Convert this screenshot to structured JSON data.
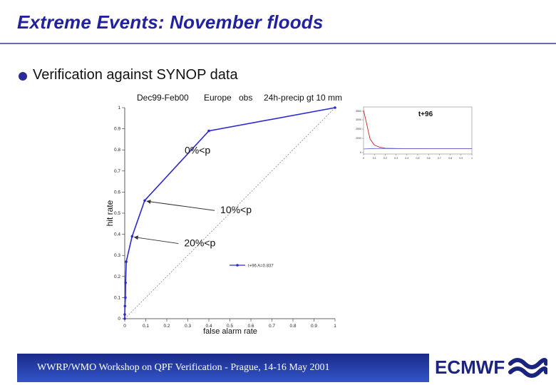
{
  "slide": {
    "title": "Extreme Events: November floods",
    "bullet": "Verification against SYNOP data",
    "footer": "WWRP/WMO Workshop on QPF Verification - Prague, 14-16 May 2001",
    "brand": "ECMWF",
    "colors": {
      "title": "#2222a0",
      "footer_bar": "#2a3fb0",
      "brand": "#1a237e"
    }
  },
  "chart_data": [
    {
      "type": "line",
      "title_parts": [
        "Dec99-Feb00",
        "Europe",
        "obs",
        "24h-precip gt 10 mm"
      ],
      "xlabel": "false alarm rate",
      "ylabel": "hit rate",
      "xlim": [
        0,
        1
      ],
      "ylim": [
        0,
        1
      ],
      "x_ticks": [
        "0",
        "0.1",
        "0.2",
        "0.3",
        "0.4",
        "0.5",
        "0.6",
        "0.7",
        "0.8",
        "0.9",
        "1"
      ],
      "y_ticks": [
        "0",
        "0.1",
        "0.2",
        "0.3",
        "0.4",
        "0.5",
        "0.6",
        "0.7",
        "0.8",
        "0.9",
        "1"
      ],
      "series": [
        {
          "name": "t+96 A=0.837",
          "color": "#2a2ad0",
          "x": [
            0,
            0,
            0.001,
            0.003,
            0.004,
            0.007,
            0.035,
            0.095,
            0.4,
            1
          ],
          "y": [
            0,
            0.02,
            0.06,
            0.1,
            0.17,
            0.27,
            0.39,
            0.56,
            0.89,
            1
          ]
        }
      ],
      "diagonal": true,
      "annotations": [
        {
          "text": "0%<p",
          "x": 0.4,
          "y": 0.89
        },
        {
          "text": "10%<p",
          "x": 0.095,
          "y": 0.56
        },
        {
          "text": "20%<p",
          "x": 0.035,
          "y": 0.39
        }
      ],
      "grid": false,
      "legend_position": "lower-right"
    },
    {
      "type": "line",
      "title": "t+96",
      "xlim": [
        0,
        1
      ],
      "x_ticks": [
        "0",
        "0.1",
        "0.2",
        "0.3",
        "0.4",
        "0.5",
        "0.6",
        "0.7",
        "0.8",
        "0.9",
        "1"
      ],
      "y_ticks": [
        "0",
        "2000",
        "2500",
        "3000",
        "3500"
      ],
      "series": [
        {
          "color": "#cc2222",
          "x": [
            0,
            0.03,
            0.06,
            0.1,
            0.15,
            0.2,
            0.3,
            0.4,
            0.5,
            0.6,
            0.7,
            0.8,
            0.9,
            1
          ],
          "y": [
            3580,
            3000,
            2400,
            2150,
            2060,
            2020,
            2008,
            2004,
            2002,
            2001,
            2000,
            2000,
            2000,
            2000
          ]
        },
        {
          "color": "#6666dd",
          "x": [
            0,
            0.05,
            0.1,
            0.15,
            0.2,
            0.3,
            0.4,
            0.5,
            0.6,
            0.7,
            0.8,
            0.9,
            1
          ],
          "y": [
            1990,
            2000,
            2005,
            2010,
            2006,
            2003,
            2001,
            2000,
            2000,
            2000,
            2000,
            2000,
            2000
          ]
        }
      ],
      "grid": false
    }
  ]
}
